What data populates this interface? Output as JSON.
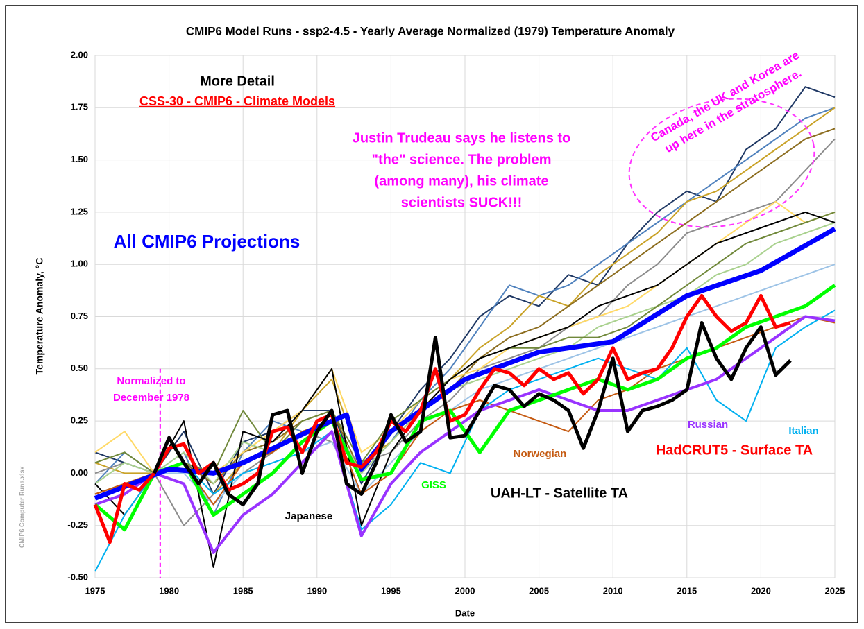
{
  "chart_data": {
    "type": "line",
    "title": "CMIP6 Model Runs - ssp2-4.5 - Yearly Average Normalized (1979) Temperature Anomaly",
    "x_label": "Date",
    "y_label": "Temperature Anomaly, °C",
    "xlim": [
      1975,
      2025
    ],
    "xticks": [
      1975,
      1980,
      1985,
      1990,
      1995,
      2000,
      2005,
      2010,
      2015,
      2020,
      2025
    ],
    "ylim": [
      -0.5,
      2.0
    ],
    "yticks": [
      {
        "value": -0.5,
        "label": "-0.50"
      },
      {
        "value": -0.25,
        "label": "-0.25"
      },
      {
        "value": 0,
        "label": "0.00"
      },
      {
        "value": 0.25,
        "label": "0.25"
      },
      {
        "value": 0.5,
        "label": "0.50"
      },
      {
        "value": 0.75,
        "label": "0.75"
      },
      {
        "value": 1,
        "label": "1.00"
      },
      {
        "value": 1.25,
        "label": "1.25"
      },
      {
        "value": 1.5,
        "label": "1.50"
      },
      {
        "value": 1.75,
        "label": "1.75"
      },
      {
        "value": 2,
        "label": "2.00"
      }
    ],
    "grid": true,
    "reference_line": {
      "x": 1979.4,
      "color": "#ff00ff"
    },
    "series": [
      {
        "color": "#1f3864",
        "x": [
          1975,
          1977,
          1979,
          1981,
          1983,
          1985,
          1987,
          1989,
          1991,
          1993,
          1995,
          1997,
          1999,
          2001,
          2003,
          2005,
          2007,
          2009,
          2011,
          2013,
          2015,
          2017,
          2019,
          2021,
          2023,
          2025
        ],
        "values": [
          0.1,
          0.05,
          0,
          0.2,
          -0.1,
          0.15,
          0.2,
          0.3,
          0.3,
          -0.05,
          0.2,
          0.4,
          0.55,
          0.75,
          0.85,
          0.8,
          0.95,
          0.9,
          1.1,
          1.25,
          1.35,
          1.3,
          1.55,
          1.65,
          1.85,
          1.8
        ]
      },
      {
        "color": "#4f81bd",
        "x": [
          1975,
          1977,
          1979,
          1981,
          1983,
          1985,
          1987,
          1989,
          1991,
          1993,
          1995,
          1997,
          1999,
          2001,
          2003,
          2005,
          2007,
          2009,
          2011,
          2013,
          2015,
          2017,
          2019,
          2021,
          2023,
          2025
        ],
        "values": [
          -0.05,
          0.1,
          0,
          0.1,
          -0.2,
          0.1,
          0.25,
          0.2,
          0.25,
          0.0,
          0.15,
          0.35,
          0.5,
          0.7,
          0.9,
          0.85,
          0.9,
          1.0,
          1.1,
          1.2,
          1.3,
          1.4,
          1.5,
          1.6,
          1.7,
          1.75
        ]
      },
      {
        "color": "#c9a227",
        "x": [
          1975,
          1977,
          1979,
          1981,
          1983,
          1985,
          1987,
          1989,
          1991,
          1993,
          1995,
          1997,
          1999,
          2001,
          2003,
          2005,
          2007,
          2009,
          2011,
          2013,
          2015,
          2017,
          2019,
          2021,
          2023,
          2025
        ],
        "values": [
          0.05,
          0.0,
          0,
          0.05,
          -0.1,
          0.05,
          0.1,
          0.3,
          0.45,
          0.05,
          0.15,
          0.3,
          0.45,
          0.6,
          0.7,
          0.85,
          0.8,
          0.95,
          1.05,
          1.15,
          1.3,
          1.35,
          1.45,
          1.55,
          1.65,
          1.75
        ]
      },
      {
        "color": "#8c6d1f",
        "x": [
          1975,
          1977,
          1979,
          1981,
          1983,
          1985,
          1987,
          1989,
          1991,
          1993,
          1995,
          1997,
          1999,
          2001,
          2003,
          2005,
          2007,
          2009,
          2011,
          2013,
          2015,
          2017,
          2019,
          2021,
          2023,
          2025
        ],
        "values": [
          -0.1,
          -0.05,
          0,
          0.05,
          -0.05,
          0.1,
          0.15,
          0.25,
          0.3,
          0.0,
          0.2,
          0.3,
          0.4,
          0.55,
          0.65,
          0.7,
          0.8,
          0.9,
          1.0,
          1.1,
          1.2,
          1.3,
          1.4,
          1.5,
          1.6,
          1.65
        ]
      },
      {
        "color": "#8c8c8c",
        "x": [
          1975,
          1977,
          1979,
          1981,
          1983,
          1985,
          1987,
          1989,
          1991,
          1993,
          1995,
          1997,
          1999,
          2001,
          2003,
          2005,
          2007,
          2009,
          2011,
          2013,
          2015,
          2017,
          2019,
          2021,
          2023,
          2025
        ],
        "values": [
          0.0,
          0.05,
          0,
          -0.25,
          -0.1,
          0.0,
          0.1,
          0.2,
          0.15,
          0.05,
          0.1,
          0.25,
          0.35,
          0.5,
          0.55,
          0.6,
          0.7,
          0.75,
          0.9,
          1.0,
          1.15,
          1.2,
          1.25,
          1.3,
          1.45,
          1.6
        ]
      },
      {
        "color": "#ffd966",
        "x": [
          1975,
          1977,
          1979,
          1981,
          1983,
          1985,
          1987,
          1989,
          1991,
          1993,
          1995,
          1997,
          1999,
          2001,
          2003,
          2005,
          2007,
          2009,
          2011,
          2013,
          2015,
          2017,
          2019,
          2021,
          2023,
          2025
        ],
        "values": [
          0.1,
          0.2,
          0,
          0.05,
          0.0,
          0.1,
          0.2,
          0.3,
          0.5,
          0.1,
          0.2,
          0.35,
          0.45,
          0.5,
          0.6,
          0.65,
          0.7,
          0.75,
          0.8,
          0.9,
          1.0,
          1.1,
          1.2,
          1.3,
          1.2,
          1.25
        ]
      },
      {
        "color": "#a9d18e",
        "x": [
          1975,
          1977,
          1979,
          1981,
          1983,
          1985,
          1987,
          1989,
          1991,
          1993,
          1995,
          1997,
          1999,
          2001,
          2003,
          2005,
          2007,
          2009,
          2011,
          2013,
          2015,
          2017,
          2019,
          2021,
          2023,
          2025
        ],
        "values": [
          -0.05,
          0.05,
          0,
          0.1,
          -0.05,
          0.15,
          0.1,
          0.2,
          0.25,
          0.0,
          0.15,
          0.3,
          0.4,
          0.45,
          0.5,
          0.55,
          0.6,
          0.7,
          0.75,
          0.8,
          0.85,
          0.95,
          1.0,
          1.1,
          1.15,
          1.2
        ]
      },
      {
        "color": "#70883a",
        "x": [
          1975,
          1977,
          1979,
          1981,
          1983,
          1985,
          1987,
          1989,
          1991,
          1993,
          1995,
          1997,
          1999,
          2001,
          2003,
          2005,
          2007,
          2009,
          2011,
          2013,
          2015,
          2017,
          2019,
          2021,
          2023,
          2025
        ],
        "values": [
          0.05,
          0.1,
          0,
          0.05,
          0.0,
          0.3,
          0.1,
          0.25,
          0.3,
          0.05,
          0.25,
          0.35,
          0.45,
          0.55,
          0.6,
          0.6,
          0.65,
          0.65,
          0.7,
          0.8,
          0.9,
          1.0,
          1.1,
          1.15,
          1.2,
          1.25
        ]
      },
      {
        "color": "#9dc3e6",
        "x": [
          1975,
          1977,
          1979,
          1981,
          1983,
          1985,
          1987,
          1989,
          1991,
          1993,
          1995,
          1997,
          1999,
          2001,
          2003,
          2005,
          2007,
          2009,
          2011,
          2013,
          2015,
          2017,
          2019,
          2021,
          2023,
          2025
        ],
        "values": [
          -0.15,
          -0.1,
          0,
          0.0,
          -0.15,
          0.0,
          0.05,
          0.1,
          0.15,
          -0.1,
          0.05,
          0.2,
          0.3,
          0.4,
          0.45,
          0.5,
          0.55,
          0.6,
          0.65,
          0.7,
          0.75,
          0.8,
          0.85,
          0.9,
          0.95,
          1.0
        ]
      },
      {
        "name": "Japanese",
        "color": "#000000",
        "x": [
          1975,
          1977,
          1979,
          1981,
          1983,
          1985,
          1987,
          1989,
          1991,
          1993,
          1995,
          1997,
          1999,
          2001,
          2003,
          2005,
          2007,
          2009,
          2011,
          2013,
          2015,
          2017,
          2019,
          2021,
          2023,
          2025
        ],
        "values": [
          -0.05,
          -0.2,
          0,
          0.25,
          -0.45,
          0.2,
          0.15,
          0.3,
          0.5,
          -0.25,
          0.1,
          0.3,
          0.45,
          0.55,
          0.6,
          0.65,
          0.7,
          0.8,
          0.85,
          0.9,
          1.0,
          1.1,
          1.15,
          1.2,
          1.25,
          1.2
        ]
      },
      {
        "name": "Norwegian",
        "color": "#c55a11",
        "x": [
          1975,
          1977,
          1979,
          1981,
          1983,
          1985,
          1987,
          1989,
          1991,
          1993,
          1995,
          1997,
          1999,
          2001,
          2003,
          2005,
          2007,
          2009,
          2011,
          2013,
          2015,
          2017,
          2019,
          2021,
          2023,
          2025
        ],
        "values": [
          -0.1,
          -0.05,
          0,
          0.05,
          -0.15,
          0.05,
          0.1,
          0.2,
          0.25,
          -0.1,
          0.0,
          0.2,
          0.3,
          0.35,
          0.3,
          0.25,
          0.2,
          0.35,
          0.4,
          0.5,
          0.55,
          0.6,
          0.65,
          0.7,
          0.75,
          0.72
        ]
      },
      {
        "name": "Italian",
        "color": "#00b0f0",
        "x": [
          1975,
          1977,
          1979,
          1981,
          1983,
          1985,
          1987,
          1989,
          1991,
          1993,
          1995,
          1997,
          1999,
          2001,
          2003,
          2005,
          2007,
          2009,
          2011,
          2013,
          2015,
          2017,
          2019,
          2021,
          2023,
          2025
        ],
        "values": [
          -0.47,
          -0.2,
          0,
          0.05,
          -0.1,
          0.0,
          0.05,
          0.1,
          0.2,
          -0.27,
          -0.15,
          0.05,
          0.0,
          0.3,
          0.4,
          0.45,
          0.5,
          0.55,
          0.5,
          0.45,
          0.6,
          0.35,
          0.25,
          0.6,
          0.7,
          0.78
        ]
      },
      {
        "name": "Russian",
        "color": "#9933ff",
        "width": 4,
        "x": [
          1975,
          1977,
          1979,
          1981,
          1983,
          1985,
          1987,
          1989,
          1991,
          1993,
          1995,
          1997,
          1999,
          2001,
          2003,
          2005,
          2007,
          2009,
          2011,
          2013,
          2015,
          2017,
          2019,
          2021,
          2023,
          2025
        ],
        "values": [
          -0.15,
          -0.1,
          0,
          -0.05,
          -0.38,
          -0.2,
          -0.1,
          0.05,
          0.2,
          -0.3,
          -0.05,
          0.1,
          0.2,
          0.3,
          0.35,
          0.4,
          0.35,
          0.3,
          0.3,
          0.35,
          0.4,
          0.45,
          0.55,
          0.65,
          0.75,
          0.73
        ]
      },
      {
        "name": "GISS",
        "color": "#00ff00",
        "width": 5,
        "x": [
          1975,
          1977,
          1979,
          1981,
          1983,
          1985,
          1987,
          1989,
          1991,
          1993,
          1995,
          1997,
          1999,
          2001,
          2003,
          2005,
          2007,
          2009,
          2011,
          2013,
          2015,
          2017,
          2019,
          2021,
          2023,
          2025
        ],
        "values": [
          -0.15,
          -0.27,
          0,
          0.05,
          -0.2,
          -0.1,
          0.0,
          0.15,
          0.25,
          -0.03,
          0.0,
          0.25,
          0.3,
          0.1,
          0.3,
          0.35,
          0.4,
          0.45,
          0.4,
          0.45,
          0.55,
          0.6,
          0.7,
          0.75,
          0.8,
          0.9
        ]
      },
      {
        "color": "#0000ff",
        "width": 7,
        "x": [
          1975,
          1980,
          1983,
          1985,
          1990,
          1992,
          1993,
          1995,
          2000,
          2005,
          2010,
          2015,
          2020,
          2025
        ],
        "values": [
          -0.12,
          0.02,
          0.0,
          0.05,
          0.22,
          0.28,
          0.02,
          0.2,
          0.45,
          0.58,
          0.63,
          0.85,
          0.97,
          1.17
        ]
      },
      {
        "color": "#ff0000",
        "width": 5,
        "x": [
          1975,
          1976,
          1977,
          1978,
          1979,
          1980,
          1981,
          1982,
          1983,
          1984,
          1985,
          1986,
          1987,
          1988,
          1989,
          1990,
          1991,
          1992,
          1993,
          1994,
          1995,
          1996,
          1997,
          1998,
          1999,
          2000,
          2001,
          2002,
          2003,
          2004,
          2005,
          2006,
          2007,
          2008,
          2009,
          2010,
          2011,
          2012,
          2013,
          2014,
          2015,
          2016,
          2017,
          2018,
          2019,
          2020,
          2021,
          2022
        ],
        "values": [
          -0.15,
          -0.33,
          -0.05,
          -0.08,
          0.0,
          0.12,
          0.14,
          0.0,
          0.05,
          -0.08,
          -0.05,
          0.0,
          0.2,
          0.22,
          0.1,
          0.25,
          0.28,
          0.05,
          0.03,
          0.1,
          0.25,
          0.2,
          0.3,
          0.5,
          0.25,
          0.28,
          0.4,
          0.5,
          0.48,
          0.42,
          0.5,
          0.45,
          0.48,
          0.38,
          0.45,
          0.6,
          0.45,
          0.48,
          0.5,
          0.6,
          0.75,
          0.85,
          0.75,
          0.68,
          0.72,
          0.85,
          0.7,
          0.72
        ]
      },
      {
        "color": "#000000",
        "width": 5,
        "x": [
          1979,
          1980,
          1981,
          1982,
          1983,
          1984,
          1985,
          1986,
          1987,
          1988,
          1989,
          1990,
          1991,
          1992,
          1993,
          1994,
          1995,
          1996,
          1997,
          1998,
          1999,
          2000,
          2001,
          2002,
          2003,
          2004,
          2005,
          2006,
          2007,
          2008,
          2009,
          2010,
          2011,
          2012,
          2013,
          2014,
          2015,
          2016,
          2017,
          2018,
          2019,
          2020,
          2021,
          2022
        ],
        "values": [
          0.0,
          0.17,
          0.05,
          -0.05,
          0.05,
          -0.1,
          -0.15,
          -0.05,
          0.28,
          0.3,
          0.0,
          0.2,
          0.3,
          -0.05,
          -0.1,
          0.05,
          0.28,
          0.15,
          0.2,
          0.65,
          0.17,
          0.18,
          0.3,
          0.42,
          0.4,
          0.32,
          0.38,
          0.35,
          0.3,
          0.12,
          0.3,
          0.55,
          0.2,
          0.3,
          0.32,
          0.35,
          0.4,
          0.72,
          0.55,
          0.45,
          0.6,
          0.7,
          0.47,
          0.54
        ]
      }
    ],
    "annotations": [
      {
        "lines": [
          "More Detail"
        ],
        "color": "#000000"
      },
      {
        "lines": [
          "CSS-30 - CMIP6 - Climate Models"
        ],
        "color": "#ff0000"
      },
      {
        "lines": [
          "Justin Trudeau says he listens to",
          "\"the\" science. The problem",
          "(among many), his climate",
          "scientists SUCK!!!"
        ],
        "color": "#ff00ff"
      },
      {
        "lines": [
          "All CMIP6 Projections"
        ],
        "color": "#0000ff"
      },
      {
        "lines": [
          "Canada, the UK and Korea are",
          "up here in the stratosphere."
        ],
        "color": "#ff00ff"
      },
      {
        "lines": [
          "Normalized to",
          "December 1978"
        ],
        "color": "#ff00ff"
      },
      {
        "lines": [
          "UAH-LT - Satellite TA"
        ],
        "color": "#000000"
      },
      {
        "lines": [
          "HadCRUT5 - Surface TA"
        ],
        "color": "#ff0000"
      },
      {
        "lines": [
          "CMIP6 Computer Runs.xlsx"
        ],
        "color": "#a6a6a6"
      }
    ]
  }
}
